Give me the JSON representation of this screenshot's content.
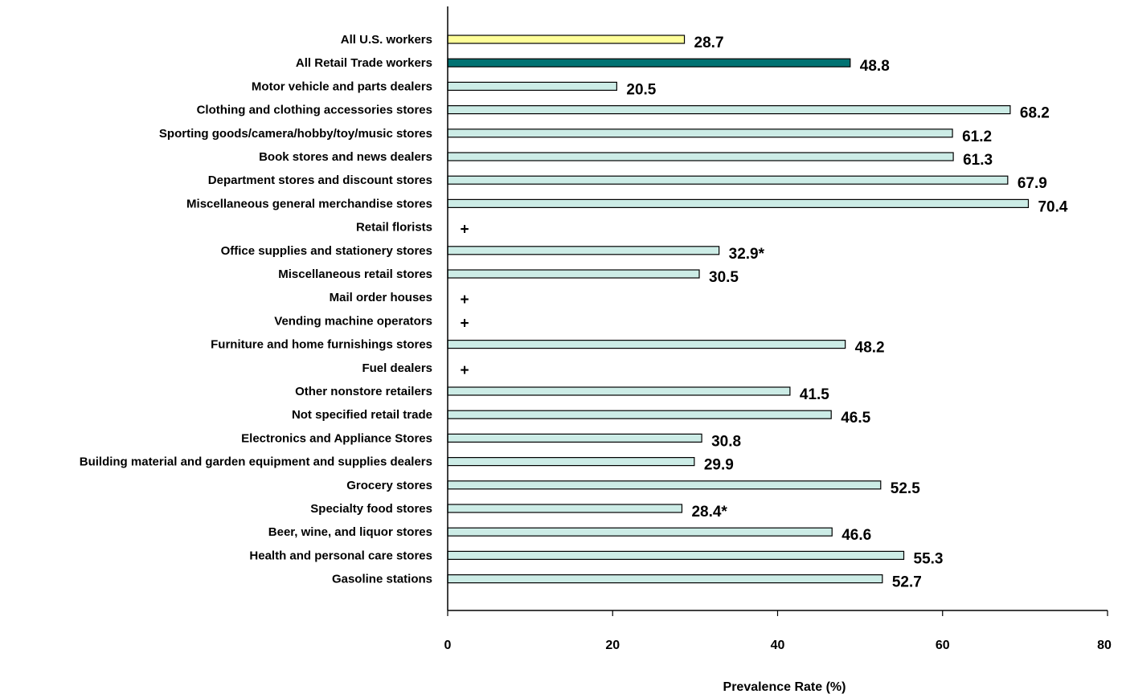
{
  "chart_data": {
    "type": "bar",
    "orientation": "horizontal",
    "title": "",
    "xlabel": "Prevalence Rate (%)",
    "ylabel": "",
    "xlim": [
      0,
      80
    ],
    "xticks": [
      "0",
      "20",
      "40",
      "60",
      "80"
    ],
    "grid": false,
    "colors": {
      "all_us": "#ffff99",
      "all_retail": "#007272",
      "default": "#ccece6",
      "edge": "#000000"
    },
    "bars": [
      {
        "category": "All U.S. workers",
        "value": 28.7,
        "label": "28.7",
        "color_key": "all_us"
      },
      {
        "category": "All Retail Trade workers",
        "value": 48.8,
        "label": "48.8",
        "color_key": "all_retail"
      },
      {
        "category": "Motor vehicle and parts dealers",
        "value": 20.5,
        "label": "20.5",
        "color_key": "default"
      },
      {
        "category": "Clothing and clothing accessories stores",
        "value": 68.2,
        "label": "68.2",
        "color_key": "default"
      },
      {
        "category": "Sporting goods/camera/hobby/toy/music stores",
        "value": 61.2,
        "label": "61.2",
        "color_key": "default"
      },
      {
        "category": "Book stores and news dealers",
        "value": 61.3,
        "label": "61.3",
        "color_key": "default"
      },
      {
        "category": "Department stores and discount stores",
        "value": 67.9,
        "label": "67.9",
        "color_key": "default"
      },
      {
        "category": "Miscellaneous general merchandise stores",
        "value": 70.4,
        "label": "70.4",
        "color_key": "default"
      },
      {
        "category": "Retail florists",
        "value": null,
        "label": "+",
        "color_key": "default"
      },
      {
        "category": "Office supplies and stationery stores",
        "value": 32.9,
        "label": "32.9*",
        "color_key": "default"
      },
      {
        "category": "Miscellaneous retail stores",
        "value": 30.5,
        "label": "30.5",
        "color_key": "default"
      },
      {
        "category": "Mail order houses",
        "value": null,
        "label": "+",
        "color_key": "default"
      },
      {
        "category": "Vending machine operators",
        "value": null,
        "label": "+",
        "color_key": "default"
      },
      {
        "category": "Furniture and home furnishings stores",
        "value": 48.2,
        "label": "48.2",
        "color_key": "default"
      },
      {
        "category": "Fuel dealers",
        "value": null,
        "label": "+",
        "color_key": "default"
      },
      {
        "category": "Other nonstore retailers",
        "value": 41.5,
        "label": "41.5",
        "color_key": "default"
      },
      {
        "category": "Not specified retail trade",
        "value": 46.5,
        "label": "46.5",
        "color_key": "default"
      },
      {
        "category": "Electronics and Appliance Stores",
        "value": 30.8,
        "label": "30.8",
        "color_key": "default"
      },
      {
        "category": "Building material and garden equipment and supplies dealers",
        "value": 29.9,
        "label": "29.9",
        "color_key": "default"
      },
      {
        "category": "Grocery stores",
        "value": 52.5,
        "label": "52.5",
        "color_key": "default"
      },
      {
        "category": "Specialty food stores",
        "value": 28.4,
        "label": "28.4*",
        "color_key": "default"
      },
      {
        "category": "Beer, wine, and liquor stores",
        "value": 46.6,
        "label": "46.6",
        "color_key": "default"
      },
      {
        "category": "Health and personal care stores",
        "value": 55.3,
        "label": "55.3",
        "color_key": "default"
      },
      {
        "category": "Gasoline stations",
        "value": 52.7,
        "label": "52.7",
        "color_key": "default"
      }
    ]
  }
}
